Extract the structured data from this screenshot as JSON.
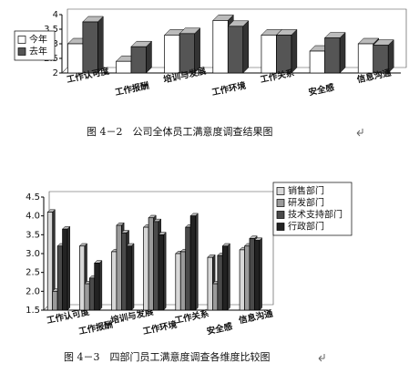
{
  "chart_data": [
    {
      "type": "bar",
      "caption": "图 4－2　公司全体员工满意度调查结果图",
      "categories": [
        "工作认可度",
        "工作报酬",
        "培训与发展",
        "工作环境",
        "工作关系",
        "安全感",
        "信息沟通"
      ],
      "series": [
        {
          "name": "今年",
          "color": "#ffffff",
          "values": [
            3.0,
            2.4,
            3.3,
            3.8,
            3.3,
            2.75,
            3.0
          ]
        },
        {
          "name": "去年",
          "color": "#555555",
          "values": [
            3.75,
            2.9,
            3.35,
            3.6,
            3.3,
            3.2,
            2.95
          ]
        }
      ],
      "ylim": [
        2,
        4
      ],
      "yticks": [
        2,
        2.5,
        3,
        3.5,
        4
      ],
      "legend": "left"
    },
    {
      "type": "bar",
      "caption": "图 4－3　四部门员工满意度调查各维度比较图",
      "categories": [
        "工作认可度",
        "工作报酬",
        "培训与发展",
        "工作环境",
        "工作关系",
        "安全感",
        "信息沟通"
      ],
      "series": [
        {
          "name": "销售部门",
          "color": "#d8d8d8",
          "values": [
            4.1,
            3.2,
            3.05,
            3.7,
            3.0,
            2.9,
            3.1
          ]
        },
        {
          "name": "研发部门",
          "color": "#9a9a9a",
          "values": [
            2.0,
            2.2,
            3.75,
            3.95,
            3.05,
            2.2,
            3.2
          ]
        },
        {
          "name": "技术支持部门",
          "color": "#4a4a4a",
          "values": [
            3.2,
            2.35,
            3.55,
            3.85,
            3.7,
            2.95,
            3.4
          ]
        },
        {
          "name": "行政部门",
          "color": "#222222",
          "values": [
            3.65,
            2.75,
            3.2,
            3.5,
            4.0,
            3.2,
            3.35
          ]
        }
      ],
      "ylim": [
        1.5,
        4.5
      ],
      "yticks": [
        1.5,
        {
          "value": 2,
          "label": "2.0"
        },
        2.5,
        {
          "value": 3,
          "label": "3.0"
        },
        3.5,
        {
          "value": 4,
          "label": "4.0"
        },
        4.5
      ],
      "legend": "right"
    }
  ]
}
